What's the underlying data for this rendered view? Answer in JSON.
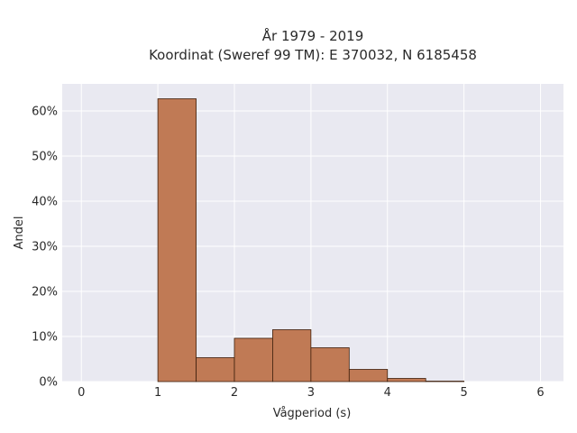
{
  "chart_data": {
    "type": "bar",
    "title_lines": [
      "År 1979 - 2019",
      "Koordinat (Sweref 99 TM): E 370032, N 6185458"
    ],
    "xlabel": "Vågperiod (s)",
    "ylabel": "Andel",
    "xlim": [
      -0.25,
      6.3
    ],
    "ylim": [
      0,
      0.66
    ],
    "x_ticks": [
      0,
      1,
      2,
      3,
      4,
      5,
      6
    ],
    "y_ticks": [
      0,
      0.1,
      0.2,
      0.3,
      0.4,
      0.5,
      0.6
    ],
    "y_tick_labels": [
      "0%",
      "10%",
      "20%",
      "30%",
      "40%",
      "50%",
      "60%"
    ],
    "bin_width": 0.5,
    "bins": [
      {
        "start": 1.0,
        "value": 0.627
      },
      {
        "start": 1.5,
        "value": 0.053
      },
      {
        "start": 2.0,
        "value": 0.096
      },
      {
        "start": 2.5,
        "value": 0.115
      },
      {
        "start": 3.0,
        "value": 0.075
      },
      {
        "start": 3.5,
        "value": 0.027
      },
      {
        "start": 4.0,
        "value": 0.007
      },
      {
        "start": 4.5,
        "value": 0.001
      }
    ],
    "bar_color": "#c07a55",
    "plot_bg": "#e9e9f1",
    "grid": true
  }
}
